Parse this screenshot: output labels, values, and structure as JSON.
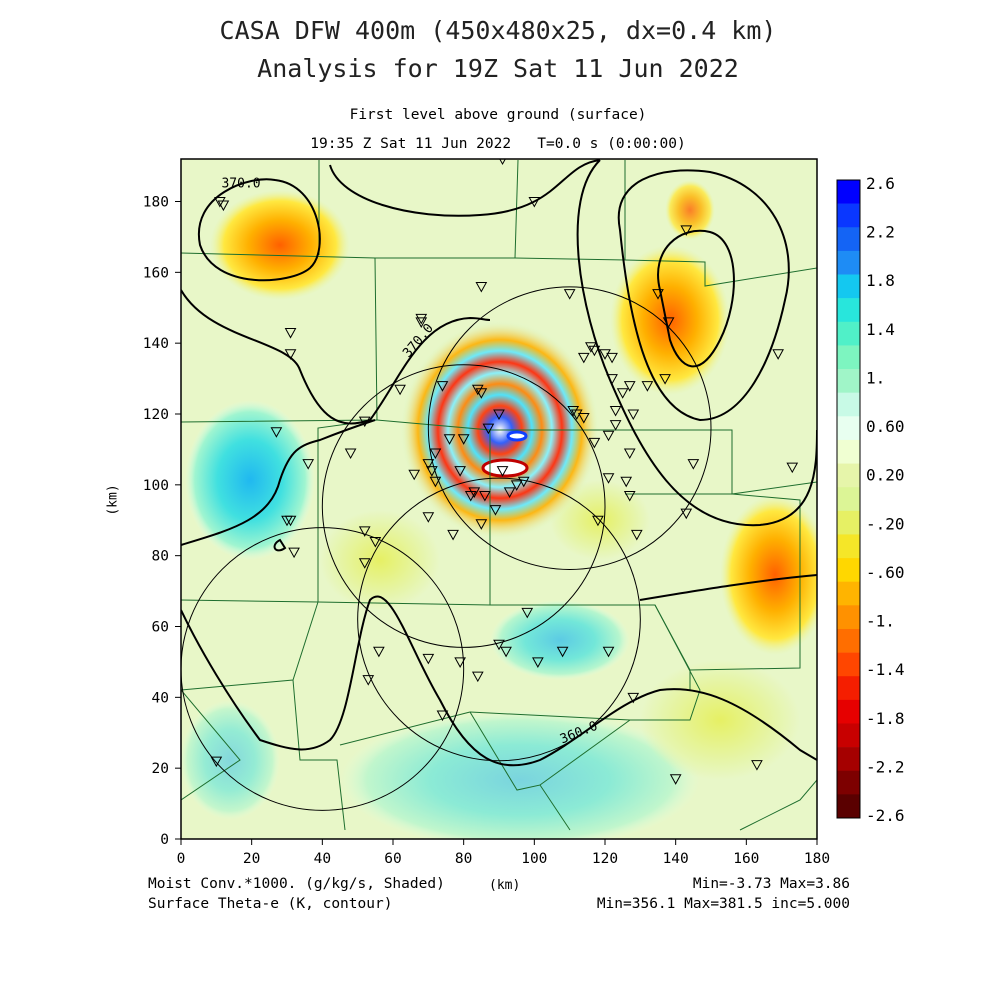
{
  "titles": {
    "line1": "CASA DFW 400m (450x480x25, dx=0.4 km)",
    "line2": "Analysis for 19Z Sat 11 Jun 2022",
    "sub1": "First level above ground (surface)",
    "sub2": "19:35 Z Sat 11 Jun 2022   T=0.0 s (0:00:00)"
  },
  "footer": {
    "field1": "Moist Conv.*1000. (g/kg/s, Shaded)",
    "field2": "Surface Theta-e (K, contour)",
    "xunit": "(km)",
    "range1": "Min=-3.73 Max=3.86",
    "range2": "Min=356.1 Max=381.5 inc=5.000"
  },
  "chart_data": {
    "type": "heatmap",
    "title": "First level above ground (surface)",
    "xlabel": "",
    "ylabel": "(km)",
    "xlim": [
      0,
      180
    ],
    "ylim": [
      0,
      192
    ],
    "x_ticks": [
      0,
      20,
      40,
      60,
      80,
      100,
      120,
      140,
      160,
      180
    ],
    "y_ticks": [
      0,
      20,
      40,
      60,
      80,
      100,
      120,
      140,
      160,
      180
    ],
    "shaded_field": "Moist Conv.*1000. (g/kg/s)",
    "shaded_min": -3.73,
    "shaded_max": 3.86,
    "contour_field": "Surface Theta-e (K)",
    "contour_min": 356.1,
    "contour_max": 381.5,
    "contour_inc": 5.0,
    "contour_labels": [
      {
        "text": "370.0",
        "x": 17,
        "y": 184
      },
      {
        "text": "370.0",
        "x": 68,
        "y": 140
      },
      {
        "text": "360.0",
        "x": 113,
        "y": 29
      }
    ],
    "colorbar": {
      "labels": [
        "2.6",
        "2.2",
        "1.8",
        "1.4",
        "1.",
        "0.60",
        "0.20",
        "-.20",
        "-.60",
        "-1.",
        "-1.4",
        "-1.8",
        "-2.2",
        "-2.6"
      ],
      "colors": [
        "#0000ff",
        "#0a37ff",
        "#1464f5",
        "#1e8cf5",
        "#14c8f0",
        "#28e6dc",
        "#50f0c8",
        "#7df5c0",
        "#a0f5c8",
        "#c8fae6",
        "#e8fff0",
        "#f0ffd2",
        "#e6f5aa",
        "#dcf596",
        "#e6f064",
        "#f5e628",
        "#ffd700",
        "#ffb400",
        "#ff9100",
        "#ff6e00",
        "#ff4600",
        "#f51e00",
        "#e60000",
        "#c80000",
        "#a50000",
        "#7d0000",
        "#5a0000"
      ]
    },
    "radar_circles": [
      {
        "cx": 40,
        "cy": 48,
        "r": 40
      },
      {
        "cx": 80,
        "cy": 94,
        "r": 40
      },
      {
        "cx": 90,
        "cy": 62,
        "r": 40
      },
      {
        "cx": 110,
        "cy": 116,
        "r": 40
      }
    ],
    "stations": [
      [
        11,
        180
      ],
      [
        12,
        179
      ],
      [
        31,
        143
      ],
      [
        31,
        137
      ],
      [
        27,
        115
      ],
      [
        36,
        106
      ],
      [
        31,
        90
      ],
      [
        30,
        90
      ],
      [
        32,
        81
      ],
      [
        62,
        127
      ],
      [
        68,
        147
      ],
      [
        68,
        146
      ],
      [
        74,
        128
      ],
      [
        76,
        113
      ],
      [
        80,
        113
      ],
      [
        84,
        127
      ],
      [
        85,
        126
      ],
      [
        85,
        156
      ],
      [
        87,
        116
      ],
      [
        90,
        120
      ],
      [
        91,
        192
      ],
      [
        100,
        180
      ],
      [
        110,
        154
      ],
      [
        114,
        136
      ],
      [
        116,
        139
      ],
      [
        117,
        138
      ],
      [
        120,
        137
      ],
      [
        122,
        136
      ],
      [
        125,
        126
      ],
      [
        127,
        128
      ],
      [
        123,
        121
      ],
      [
        121,
        114
      ],
      [
        117,
        112
      ],
      [
        114,
        119
      ],
      [
        111,
        121
      ],
      [
        122,
        130
      ],
      [
        123,
        117
      ],
      [
        127,
        109
      ],
      [
        128,
        120
      ],
      [
        126,
        101
      ],
      [
        127,
        97
      ],
      [
        121,
        102
      ],
      [
        118,
        90
      ],
      [
        129,
        86
      ],
      [
        132,
        128
      ],
      [
        135,
        154
      ],
      [
        138,
        146
      ],
      [
        143,
        172
      ],
      [
        145,
        106
      ],
      [
        143,
        92
      ],
      [
        169,
        137
      ],
      [
        173,
        105
      ],
      [
        48,
        109
      ],
      [
        52,
        118
      ],
      [
        72,
        109
      ],
      [
        71,
        104
      ],
      [
        70,
        106
      ],
      [
        79,
        104
      ],
      [
        82,
        97
      ],
      [
        83,
        98
      ],
      [
        86,
        97
      ],
      [
        85,
        89
      ],
      [
        91,
        104
      ],
      [
        95,
        100
      ],
      [
        93,
        98
      ],
      [
        97,
        101
      ],
      [
        89,
        93
      ],
      [
        98,
        64
      ],
      [
        101,
        50
      ],
      [
        90,
        55
      ],
      [
        92,
        53
      ],
      [
        66,
        103
      ],
      [
        72,
        101
      ],
      [
        70,
        91
      ],
      [
        77,
        86
      ],
      [
        52,
        87
      ],
      [
        55,
        84
      ],
      [
        52,
        78
      ],
      [
        56,
        53
      ],
      [
        70,
        51
      ],
      [
        79,
        50
      ],
      [
        84,
        46
      ],
      [
        53,
        45
      ],
      [
        74,
        35
      ],
      [
        137,
        130
      ],
      [
        10,
        22
      ],
      [
        140,
        17
      ],
      [
        163,
        21
      ],
      [
        128,
        40
      ],
      [
        121,
        53
      ],
      [
        108,
        53
      ],
      [
        112,
        120
      ]
    ]
  }
}
